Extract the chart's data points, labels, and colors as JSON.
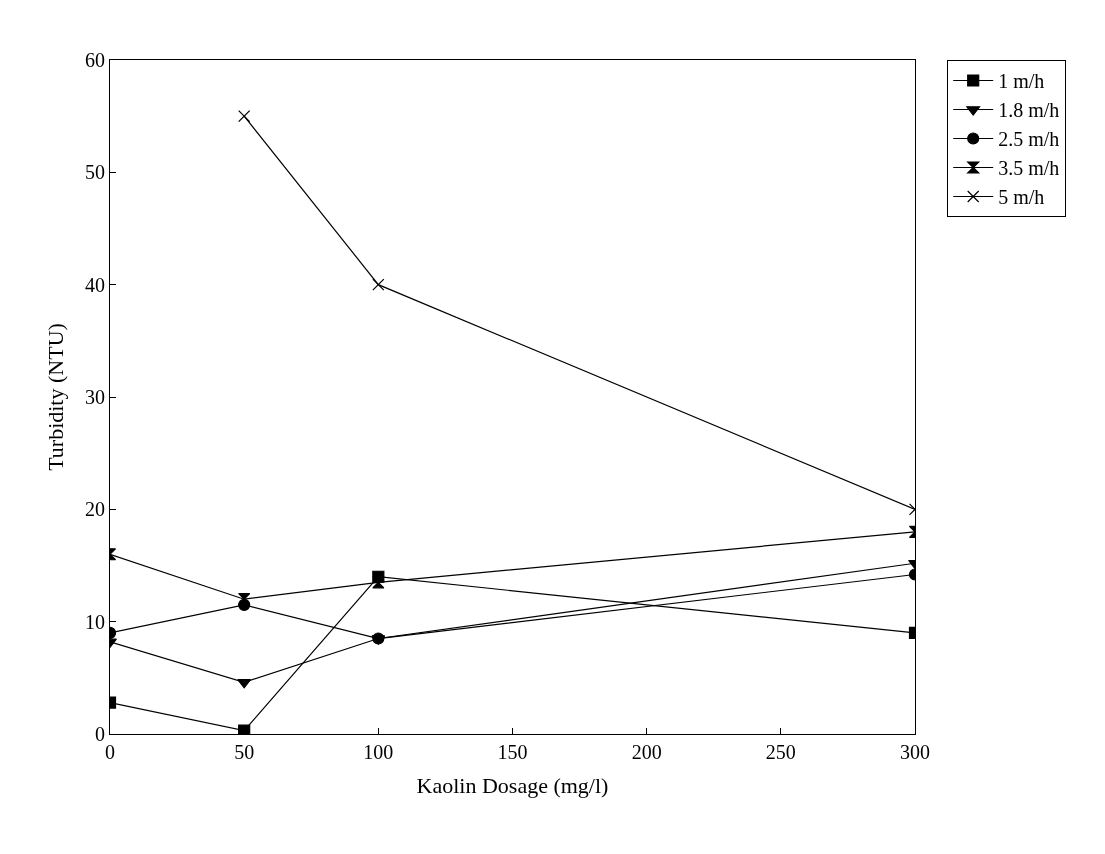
{
  "chart_data": {
    "type": "line",
    "xlabel": "Kaolin Dosage (mg/l)",
    "ylabel": "Turbidity (NTU)",
    "x": [
      0,
      50,
      100,
      300
    ],
    "series": [
      {
        "name": "1 m/h",
        "color": "#000000",
        "marker": "square",
        "values": [
          2.8,
          0.3,
          14,
          9
        ]
      },
      {
        "name": "1.8 m/h",
        "color": "#000000",
        "marker": "triangle",
        "values": [
          8.2,
          4.6,
          8.5,
          15.2
        ]
      },
      {
        "name": "2.5 m/h",
        "color": "#000000",
        "marker": "circle",
        "values": [
          9,
          11.5,
          8.5,
          14.2
        ]
      },
      {
        "name": "3.5 m/h",
        "color": "#000000",
        "marker": "diamond",
        "values": [
          16,
          12,
          13.5,
          18
        ]
      },
      {
        "name": "5 m/h",
        "color": "#000000",
        "marker": "cross",
        "values": [
          null,
          55,
          40,
          20
        ]
      }
    ],
    "xlim": [
      0,
      300
    ],
    "xticks": [
      0,
      50,
      100,
      150,
      200,
      250,
      300
    ],
    "ylim": [
      0,
      60
    ],
    "yticks": [
      0,
      10,
      20,
      30,
      40,
      50,
      60
    ],
    "legend": "right",
    "line_style": "solid"
  }
}
